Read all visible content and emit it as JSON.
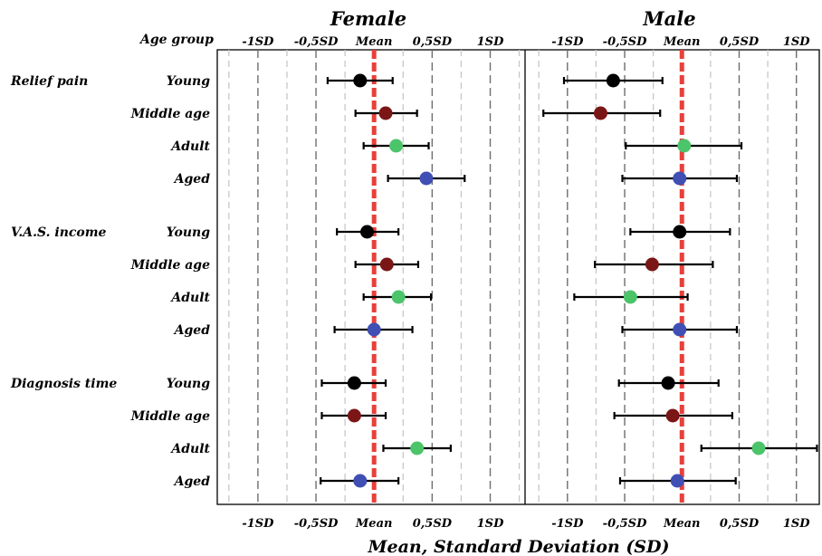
{
  "chart_data": {
    "type": "scatter",
    "subtype": "forest-plot",
    "xlabel": "Mean, Standard Deviation (SD)",
    "row_header": "Age group",
    "tick_labels": [
      "-1SD",
      "-0,5SD",
      "Mean",
      "0,5SD",
      "1SD"
    ],
    "tick_values": [
      -1,
      -0.5,
      0,
      0.5,
      1
    ],
    "minor_ticks": [
      -1.25,
      -0.75,
      -0.25,
      0.25,
      0.75,
      1.25
    ],
    "grid": true,
    "reference_line": {
      "x": 0,
      "color": "#e8403a",
      "style": "dashed"
    },
    "group_colors": {
      "Young": "#000000",
      "Middle age": "#7b1616",
      "Adult": "#4cc46a",
      "Aged": "#3f4fb4"
    },
    "errorbar_color": "#000000",
    "variables": [
      "Relief pain",
      "V.A.S. income",
      "Diagnosis time"
    ],
    "age_groups": [
      "Young",
      "Middle age",
      "Adult",
      "Aged"
    ],
    "panels": [
      {
        "title": "Female",
        "xlim": [
          -1.35,
          1.3
        ],
        "rows": [
          {
            "variable": "Relief pain",
            "group": "Young",
            "mean": -0.12,
            "low": -0.4,
            "high": 0.16
          },
          {
            "variable": "Relief pain",
            "group": "Middle age",
            "mean": 0.1,
            "low": -0.16,
            "high": 0.37
          },
          {
            "variable": "Relief pain",
            "group": "Adult",
            "mean": 0.19,
            "low": -0.09,
            "high": 0.47
          },
          {
            "variable": "Relief pain",
            "group": "Aged",
            "mean": 0.45,
            "low": 0.12,
            "high": 0.78
          },
          {
            "variable": "V.A.S. income",
            "group": "Young",
            "mean": -0.06,
            "low": -0.32,
            "high": 0.21
          },
          {
            "variable": "V.A.S. income",
            "group": "Middle age",
            "mean": 0.11,
            "low": -0.16,
            "high": 0.38
          },
          {
            "variable": "V.A.S. income",
            "group": "Adult",
            "mean": 0.21,
            "low": -0.09,
            "high": 0.49
          },
          {
            "variable": "V.A.S. income",
            "group": "Aged",
            "mean": 0.0,
            "low": -0.34,
            "high": 0.33
          },
          {
            "variable": "Diagnosis time",
            "group": "Young",
            "mean": -0.17,
            "low": -0.45,
            "high": 0.1
          },
          {
            "variable": "Diagnosis time",
            "group": "Middle age",
            "mean": -0.17,
            "low": -0.45,
            "high": 0.1
          },
          {
            "variable": "Diagnosis time",
            "group": "Adult",
            "mean": 0.37,
            "low": 0.08,
            "high": 0.66
          },
          {
            "variable": "Diagnosis time",
            "group": "Aged",
            "mean": -0.12,
            "low": -0.46,
            "high": 0.21
          }
        ]
      },
      {
        "title": "Male",
        "xlim": [
          -1.37,
          1.2
        ],
        "rows": [
          {
            "variable": "Relief pain",
            "group": "Young",
            "mean": -0.6,
            "low": -1.03,
            "high": -0.17
          },
          {
            "variable": "Relief pain",
            "group": "Middle age",
            "mean": -0.71,
            "low": -1.21,
            "high": -0.19
          },
          {
            "variable": "Relief pain",
            "group": "Adult",
            "mean": 0.02,
            "low": -0.49,
            "high": 0.52
          },
          {
            "variable": "Relief pain",
            "group": "Aged",
            "mean": -0.02,
            "low": -0.52,
            "high": 0.48
          },
          {
            "variable": "V.A.S. income",
            "group": "Young",
            "mean": -0.02,
            "low": -0.45,
            "high": 0.42
          },
          {
            "variable": "V.A.S. income",
            "group": "Middle age",
            "mean": -0.26,
            "low": -0.76,
            "high": 0.27
          },
          {
            "variable": "V.A.S. income",
            "group": "Adult",
            "mean": -0.45,
            "low": -0.94,
            "high": 0.05
          },
          {
            "variable": "V.A.S. income",
            "group": "Aged",
            "mean": -0.02,
            "low": -0.52,
            "high": 0.48
          },
          {
            "variable": "Diagnosis time",
            "group": "Young",
            "mean": -0.12,
            "low": -0.55,
            "high": 0.32
          },
          {
            "variable": "Diagnosis time",
            "group": "Middle age",
            "mean": -0.08,
            "low": -0.59,
            "high": 0.44
          },
          {
            "variable": "Diagnosis time",
            "group": "Adult",
            "mean": 0.67,
            "low": 0.17,
            "high": 1.18
          },
          {
            "variable": "Diagnosis time",
            "group": "Aged",
            "mean": -0.04,
            "low": -0.54,
            "high": 0.47
          }
        ]
      }
    ]
  }
}
